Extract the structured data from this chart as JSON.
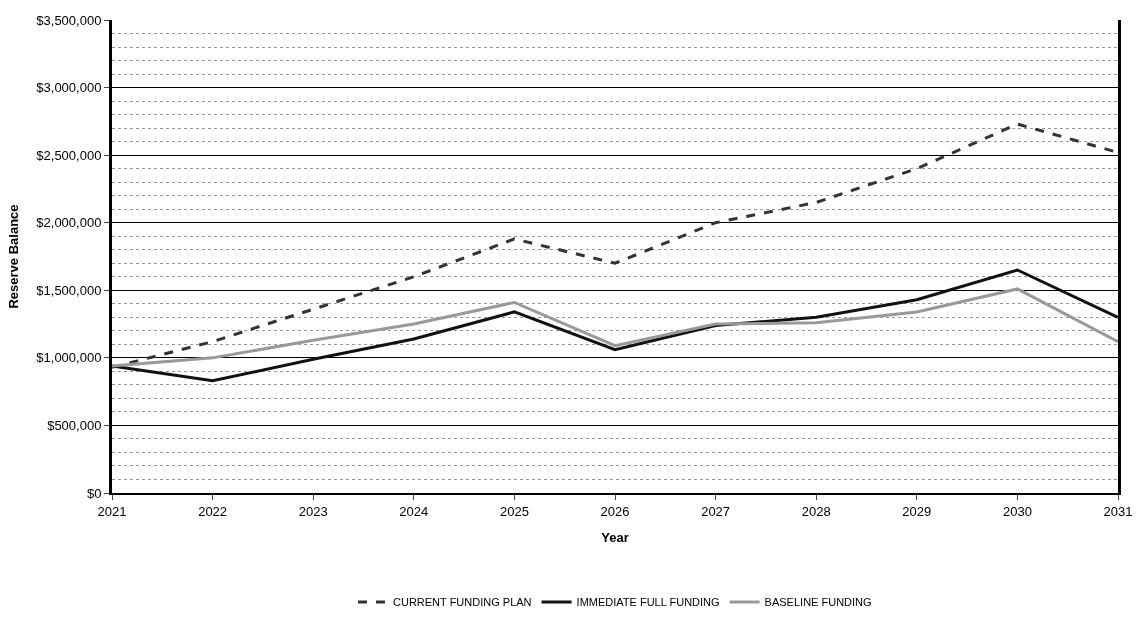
{
  "chart_data": {
    "type": "line",
    "xlabel": "Year",
    "ylabel": "Reserve Balance",
    "x": [
      2021,
      2022,
      2023,
      2024,
      2025,
      2026,
      2027,
      2028,
      2029,
      2030,
      2031
    ],
    "series": [
      {
        "name": "CURRENT FUNDING PLAN",
        "color": "#333333",
        "line_style": "dashed",
        "values": [
          930000,
          1120000,
          1360000,
          1600000,
          1880000,
          1700000,
          2000000,
          2150000,
          2400000,
          2730000,
          2520000
        ]
      },
      {
        "name": "IMMEDIATE FULL FUNDING",
        "color": "#111111",
        "line_style": "solid",
        "values": [
          940000,
          830000,
          990000,
          1140000,
          1340000,
          1060000,
          1240000,
          1300000,
          1430000,
          1650000,
          1300000
        ]
      },
      {
        "name": "BASELINE FUNDING",
        "color": "#999999",
        "line_style": "solid",
        "values": [
          940000,
          1000000,
          1130000,
          1250000,
          1410000,
          1090000,
          1250000,
          1260000,
          1340000,
          1510000,
          1120000
        ]
      }
    ],
    "xlim": [
      2021,
      2031
    ],
    "xticks": [
      2021,
      2022,
      2023,
      2024,
      2025,
      2026,
      2027,
      2028,
      2029,
      2030,
      2031
    ],
    "ylim": [
      0,
      3500000
    ],
    "yticks": [
      {
        "value": 0,
        "label": "$0"
      },
      {
        "value": 500000,
        "label": "$500,000"
      },
      {
        "value": 1000000,
        "label": "$1,000,000"
      },
      {
        "value": 1500000,
        "label": "$1,500,000"
      },
      {
        "value": 2000000,
        "label": "$2,000,000"
      },
      {
        "value": 2500000,
        "label": "$2,500,000"
      },
      {
        "value": 3000000,
        "label": "$3,000,000"
      },
      {
        "value": 3500000,
        "label": "$3,500,000"
      }
    ],
    "grid": "y",
    "legend": "bottom",
    "marker": "none"
  }
}
